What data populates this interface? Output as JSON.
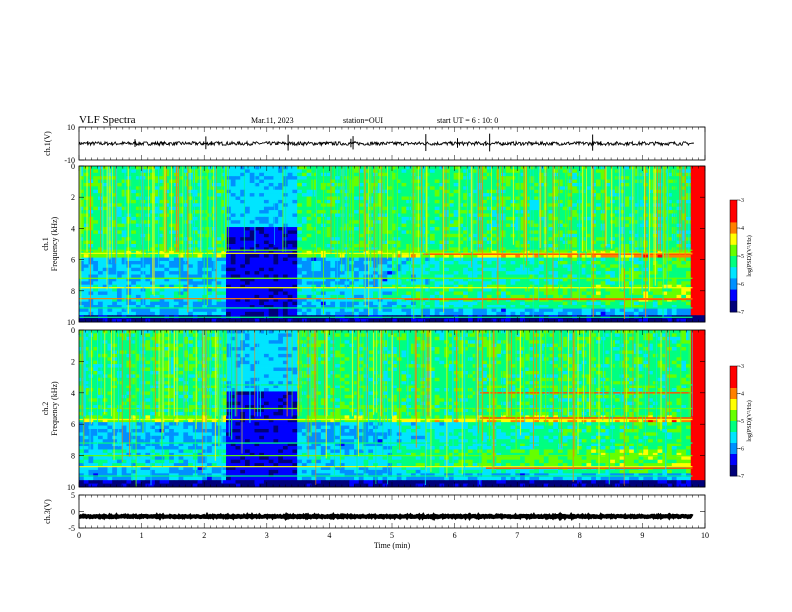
{
  "header": {
    "title": "VLF Spectra",
    "date": "Mar.11, 2023",
    "station": "station=OUI",
    "start": "start  UT =  6 : 10: 0"
  },
  "chart_data": [
    {
      "type": "line",
      "name": "ch1-waveform",
      "ylabel": "ch.1(V)",
      "yticks": [
        "10",
        "-10"
      ],
      "ylim": [
        -10,
        10
      ],
      "baseline": 0,
      "xlim": [
        0,
        10
      ]
    },
    {
      "type": "heatmap",
      "name": "ch1-spectrogram",
      "ylabel": "ch.1\nFrequency (kHz)",
      "yticks": [
        "0",
        "2",
        "4",
        "6",
        "8",
        "10"
      ],
      "ylim": [
        0,
        10
      ],
      "xlim": [
        0,
        10
      ],
      "quiet_interval_min": [
        2.35,
        3.5
      ],
      "colorbar": {
        "label": "log(PSD)(V²/Hz)",
        "ticks": [
          "-3",
          "-4",
          "-5",
          "-6",
          "-7"
        ],
        "range": [
          -7,
          -3
        ]
      }
    },
    {
      "type": "heatmap",
      "name": "ch2-spectrogram",
      "ylabel": "ch.2\nFrequency (kHz)",
      "yticks": [
        "0",
        "2",
        "4",
        "6",
        "8",
        "10"
      ],
      "ylim": [
        0,
        10
      ],
      "xlim": [
        0,
        10
      ],
      "quiet_interval_min": [
        2.35,
        3.5
      ],
      "colorbar": {
        "label": "log(PSD)(V²/Hz)",
        "ticks": [
          "-3",
          "-4",
          "-5",
          "-6",
          "-7"
        ],
        "range": [
          -7,
          -3
        ]
      }
    },
    {
      "type": "line",
      "name": "ch3-waveform",
      "ylabel": "ch.3(V)",
      "yticks": [
        "5",
        "0",
        "-5"
      ],
      "ylim": [
        -5,
        5
      ],
      "baseline": -1.5,
      "xlim": [
        0,
        10
      ],
      "xlabel": "Time  (min)",
      "xticks": [
        "0",
        "1",
        "2",
        "3",
        "4",
        "5",
        "6",
        "7",
        "8",
        "9",
        "10"
      ],
      "data_end_min": 9.8
    }
  ],
  "colors": {
    "scale": [
      "#00007a",
      "#0000ff",
      "#0090ff",
      "#00e5ff",
      "#00ff80",
      "#66ff00",
      "#ffff00",
      "#ff8000",
      "#ff0000",
      "#ffffff"
    ]
  }
}
